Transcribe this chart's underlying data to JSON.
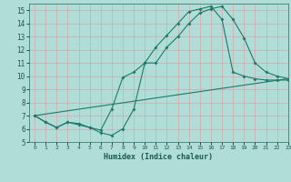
{
  "background_color": "#b0ddd8",
  "grid_color": "#c8e8e4",
  "line_color": "#1e7a6a",
  "xlabel": "Humidex (Indice chaleur)",
  "xlim": [
    -0.5,
    23
  ],
  "ylim": [
    5,
    15.5
  ],
  "xticks": [
    0,
    1,
    2,
    3,
    4,
    5,
    6,
    7,
    8,
    9,
    10,
    11,
    12,
    13,
    14,
    15,
    16,
    17,
    18,
    19,
    20,
    21,
    22,
    23
  ],
  "yticks": [
    5,
    6,
    7,
    8,
    9,
    10,
    11,
    12,
    13,
    14,
    15
  ],
  "series1": {
    "x": [
      0,
      1,
      2,
      3,
      4,
      5,
      6,
      7,
      8,
      9,
      10,
      11,
      12,
      13,
      14,
      15,
      16,
      17,
      18,
      19,
      20,
      21,
      22,
      23
    ],
    "y": [
      7.0,
      6.5,
      6.1,
      6.5,
      6.4,
      6.1,
      5.7,
      5.5,
      6.0,
      7.5,
      11.0,
      11.0,
      12.2,
      13.0,
      14.0,
      14.8,
      15.1,
      15.3,
      14.3,
      12.9,
      11.0,
      10.3,
      10.0,
      9.8
    ]
  },
  "series2": {
    "x": [
      0,
      1,
      2,
      3,
      4,
      5,
      6,
      7,
      8,
      9,
      10,
      11,
      12,
      13,
      14,
      15,
      16,
      17,
      18,
      19,
      20,
      21,
      22,
      23
    ],
    "y": [
      7.0,
      6.5,
      6.1,
      6.5,
      6.3,
      6.1,
      5.9,
      7.5,
      9.9,
      10.3,
      11.0,
      12.2,
      13.1,
      14.0,
      14.9,
      15.1,
      15.3,
      14.3,
      10.3,
      10.0,
      9.8,
      9.7,
      9.7,
      9.7
    ]
  },
  "series3": {
    "x": [
      0,
      23
    ],
    "y": [
      7.0,
      9.8
    ]
  }
}
